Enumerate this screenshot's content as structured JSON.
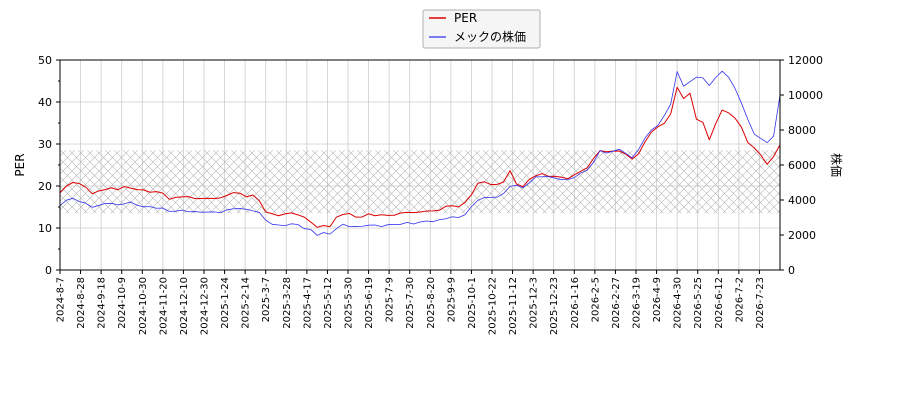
{
  "chart_data": {
    "type": "line",
    "legend": {
      "position": "top-center",
      "entries": [
        {
          "label": "PER",
          "color": "#dd0000"
        },
        {
          "label": "メックの株価",
          "color": "#3333ee"
        }
      ]
    },
    "y_left": {
      "label": "PER",
      "ylim": [
        0,
        50
      ],
      "ticks": [
        "0",
        "10",
        "20",
        "30",
        "40",
        "50"
      ]
    },
    "y_right": {
      "label": "株価",
      "ylim": [
        0,
        12000
      ],
      "ticks": [
        "0",
        "2000",
        "4000",
        "6000",
        "8000",
        "10000",
        "12000"
      ]
    },
    "x_tick_labels": [
      "2024-8-7",
      "2024-8-28",
      "2024-9-18",
      "2024-10-9",
      "2024-10-30",
      "2024-11-20",
      "2024-12-10",
      "2024-12-30",
      "2025-1-24",
      "2025-2-14",
      "2025-3-7",
      "2025-3-28",
      "2025-4-17",
      "2025-5-12",
      "2025-5-30",
      "2025-6-19",
      "2025-7-9",
      "2025-7-30",
      "2025-8-20",
      "2025-9-9",
      "2025-10-1",
      "2025-10-22",
      "2025-11-12",
      "2025-12-3",
      "2025-12-23",
      "2026-1-16",
      "2026-2-5",
      "2026-2-27",
      "2026-3-19",
      "2026-4-9",
      "2026-4-30",
      "2026-5-25",
      "2026-6-12",
      "2026-7-2",
      "2026-7-23"
    ],
    "per_band": [
      13.5,
      28.5
    ],
    "grid": true,
    "series": [
      {
        "name": "PER",
        "axis": "left",
        "color": "#dd0000",
        "values": [
          18.2,
          20.0,
          21.0,
          20.5,
          19.8,
          18.0,
          18.8,
          19.3,
          19.5,
          19.2,
          19.7,
          19.5,
          19.3,
          19.0,
          18.6,
          18.5,
          18.3,
          17.0,
          17.2,
          17.5,
          17.3,
          17.0,
          17.2,
          17.0,
          17.1,
          17.0,
          17.8,
          18.6,
          18.2,
          17.5,
          17.7,
          16.5,
          14.0,
          13.3,
          13.0,
          13.2,
          13.6,
          13.3,
          12.5,
          11.5,
          10.0,
          10.6,
          10.5,
          12.5,
          13.3,
          13.3,
          12.6,
          12.8,
          13.3,
          13.0,
          13.0,
          13.0,
          13.2,
          13.5,
          13.8,
          13.5,
          13.8,
          14.2,
          14.0,
          14.3,
          15.0,
          15.3,
          15.2,
          16.0,
          18.0,
          20.5,
          21.0,
          20.5,
          20.3,
          21.0,
          23.5,
          20.5,
          20.0,
          21.5,
          22.5,
          22.8,
          22.3,
          22.5,
          22.0,
          21.8,
          22.5,
          23.5,
          24.5,
          26.5,
          28.5,
          28.0,
          28.3,
          28.5,
          27.5,
          26.5,
          27.5,
          30.5,
          33.0,
          34.0,
          35.0,
          37.0,
          43.5,
          41.0,
          42.0,
          36.0,
          35.0,
          31.0,
          35.0,
          38.0,
          37.5,
          36.0,
          34.0,
          30.5,
          29.0,
          27.5,
          25.0,
          27.0,
          30.0
        ]
      },
      {
        "name": "メックの株価",
        "axis": "right",
        "color": "#3333ee",
        "values": [
          3700,
          3950,
          4100,
          3950,
          3800,
          3600,
          3650,
          3800,
          3850,
          3700,
          3800,
          3850,
          3700,
          3650,
          3600,
          3550,
          3500,
          3350,
          3400,
          3400,
          3350,
          3300,
          3300,
          3350,
          3300,
          3300,
          3400,
          3500,
          3550,
          3450,
          3400,
          3250,
          2850,
          2650,
          2550,
          2550,
          2600,
          2600,
          2400,
          2300,
          2000,
          2100,
          2050,
          2400,
          2600,
          2500,
          2450,
          2500,
          2600,
          2550,
          2500,
          2550,
          2600,
          2650,
          2700,
          2650,
          2700,
          2800,
          2800,
          2850,
          2950,
          3000,
          3000,
          3200,
          3600,
          4000,
          4100,
          4150,
          4200,
          4350,
          4800,
          4800,
          4700,
          5000,
          5300,
          5350,
          5300,
          5250,
          5200,
          5150,
          5300,
          5500,
          5700,
          6200,
          6800,
          6700,
          6750,
          6900,
          6700,
          6400,
          6900,
          7500,
          8000,
          8300,
          8800,
          9500,
          11300,
          10500,
          10800,
          11000,
          11000,
          10500,
          11000,
          11400,
          11000,
          10400,
          9500,
          8600,
          7800,
          7500,
          7300,
          7600,
          10000
        ]
      }
    ]
  }
}
